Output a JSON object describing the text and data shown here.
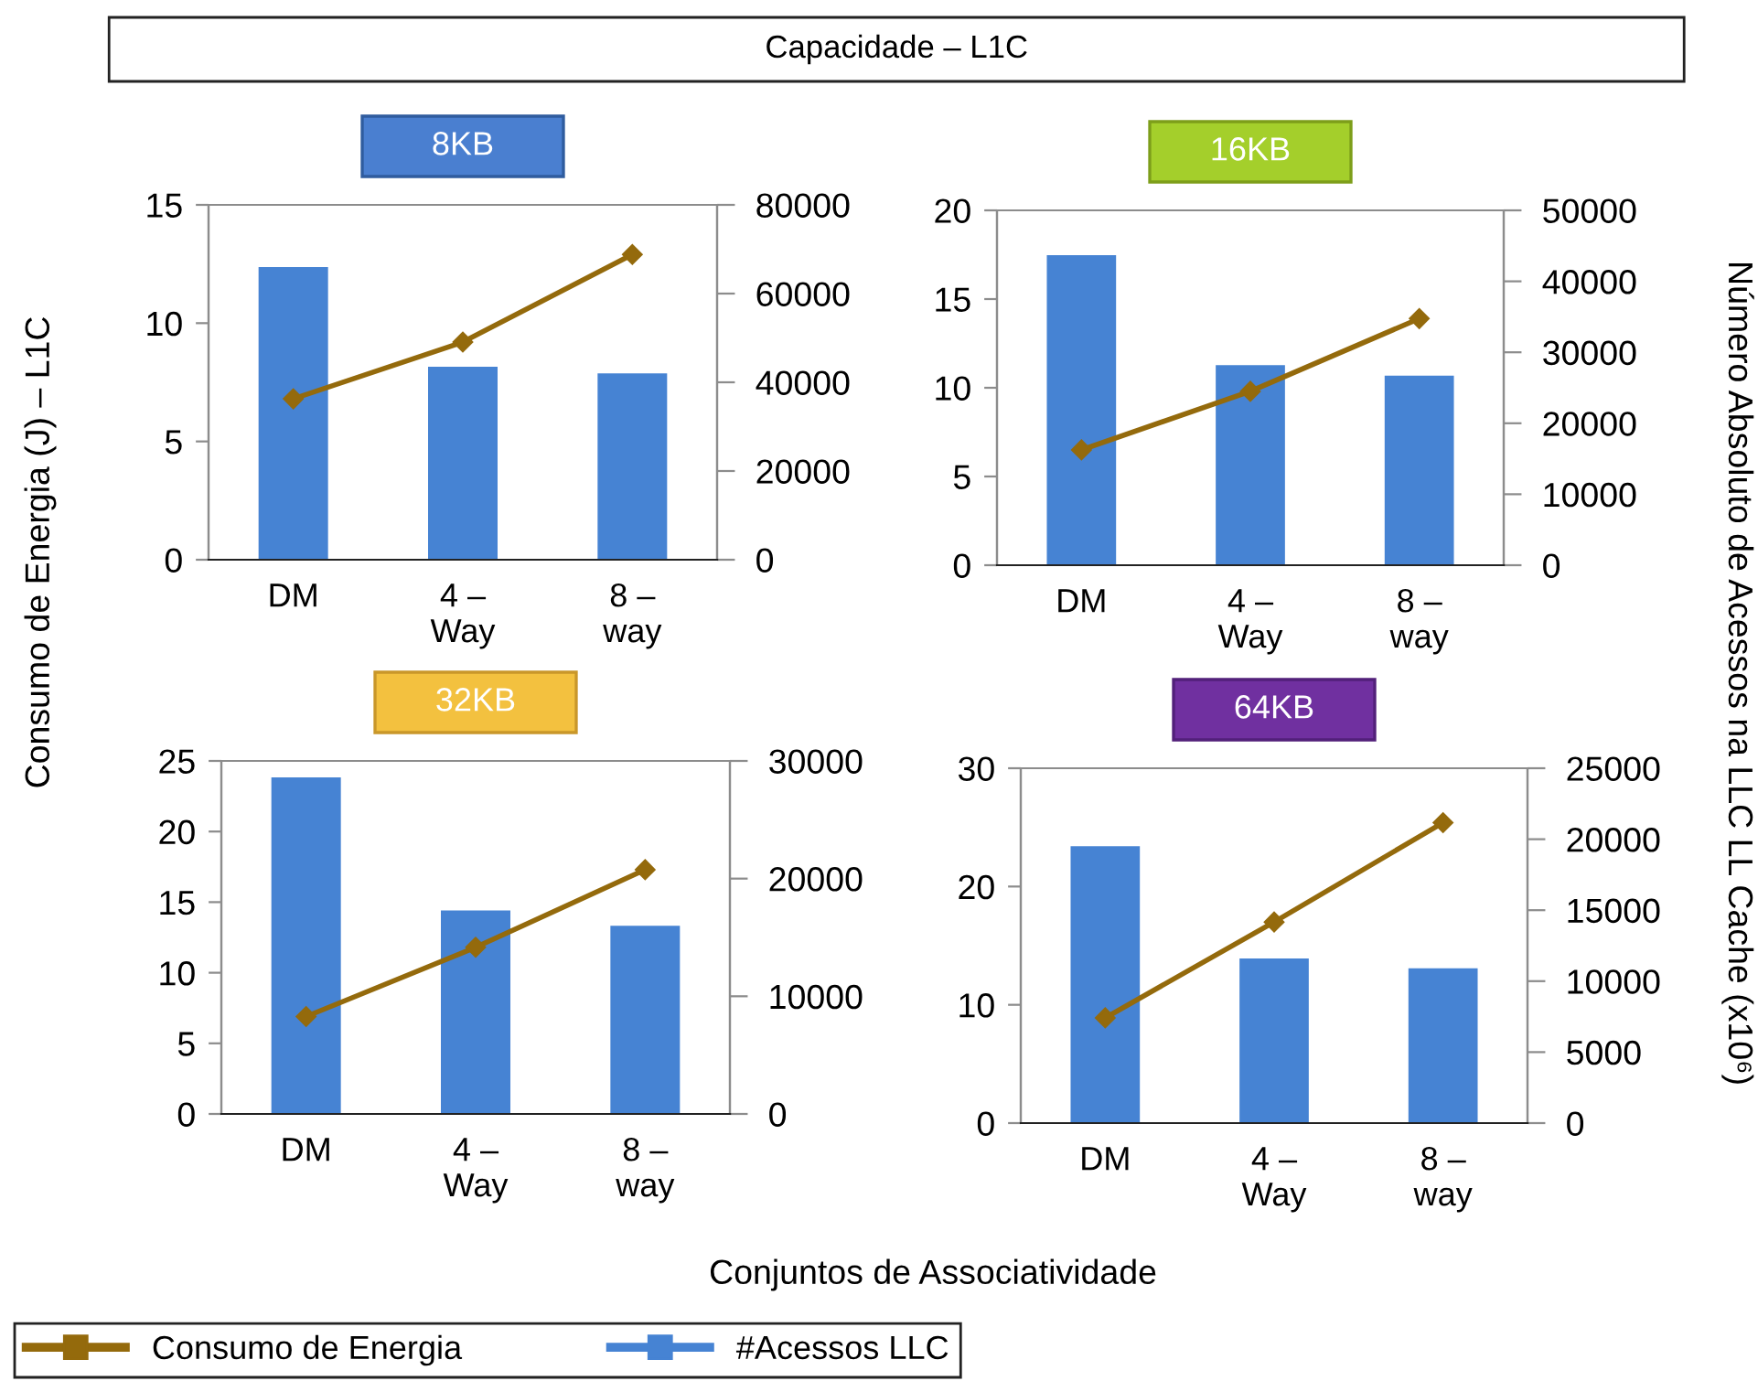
{
  "chart_data": [
    {
      "type": "bar",
      "title": "8KB",
      "annotations": [
        "Capacidade – L1C"
      ],
      "xlabel": "Conjuntos de Associatividade",
      "ylabel": "Consumo de Energia (J) – L1C",
      "y2label": "Número Absoluto de Acessos na LLC LL Cache (x10⁶)",
      "legend": "bottom left",
      "marker": "diamond",
      "categories": [
        "DM",
        "4 –\nWay",
        "8 –\nway"
      ],
      "series": [
        {
          "name": "Consumo de Energia",
          "type": "line",
          "color": "#946a0c",
          "values": [
            6.8,
            9.2,
            12.9
          ]
        },
        {
          "name": "#Acessos LLC",
          "axis": "y2",
          "color": "#4683d3",
          "values": [
            66000,
            43500,
            42000
          ]
        }
      ],
      "ylim": [
        0,
        15
      ],
      "yticks": [
        0,
        5,
        10,
        15
      ],
      "y2lim": [
        0,
        80000
      ],
      "y2ticks": [
        0,
        20000,
        40000,
        60000,
        80000
      ]
    },
    {
      "type": "bar",
      "title": "16KB",
      "marker": "diamond",
      "categories": [
        "DM",
        "4 –\nWay",
        "8 –\nway"
      ],
      "series": [
        {
          "type": "line",
          "color": "#946a0c",
          "values": [
            6.5,
            9.8,
            13.9
          ]
        },
        {
          "axis": "y2",
          "color": "#4683d3",
          "values": [
            43700,
            28200,
            26700
          ]
        }
      ],
      "ylim": [
        0,
        20
      ],
      "yticks": [
        0,
        5,
        10,
        15,
        20
      ],
      "y2lim": [
        0,
        50000
      ],
      "y2ticks": [
        0,
        10000,
        20000,
        30000,
        40000,
        50000
      ]
    },
    {
      "type": "bar",
      "title": "32KB",
      "marker": "diamond",
      "categories": [
        "DM",
        "4 –\nWay",
        "8 –\nway"
      ],
      "series": [
        {
          "type": "line",
          "color": "#946a0c",
          "values": [
            6.9,
            11.8,
            17.3
          ]
        },
        {
          "axis": "y2",
          "color": "#4683d3",
          "values": [
            28600,
            17300,
            16000
          ]
        }
      ],
      "ylim": [
        0,
        25
      ],
      "yticks": [
        0,
        5,
        10,
        15,
        20,
        25
      ],
      "y2lim": [
        0,
        30000
      ],
      "y2ticks": [
        0,
        10000,
        20000,
        30000
      ]
    },
    {
      "type": "bar",
      "title": "64KB",
      "marker": "diamond",
      "categories": [
        "DM",
        "4 –\nWay",
        "8 –\nway"
      ],
      "series": [
        {
          "type": "line",
          "color": "#946a0c",
          "values": [
            8.9,
            17.0,
            25.4
          ]
        },
        {
          "axis": "y2",
          "color": "#4683d3",
          "values": [
            19500,
            11600,
            10900
          ]
        }
      ],
      "ylim": [
        0,
        30
      ],
      "yticks": [
        0,
        10,
        20,
        30
      ],
      "y2lim": [
        0,
        25000
      ],
      "y2ticks": [
        0,
        5000,
        10000,
        15000,
        20000,
        25000
      ]
    }
  ]
}
